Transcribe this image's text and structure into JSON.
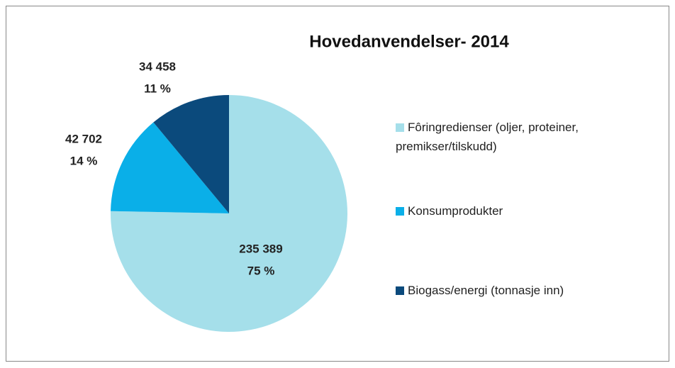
{
  "chart_data": {
    "type": "pie",
    "title": "Hovedanvendelser- 2014",
    "categories": [
      "Fôringredienser (oljer, proteiner, premikser/tilskudd)",
      "Konsumprodukter",
      "Biogass/energi (tonnasje inn)"
    ],
    "values": [
      235389,
      42702,
      34458
    ],
    "value_labels": [
      "235 389",
      "42 702",
      "34 458"
    ],
    "percents": [
      75,
      14,
      11
    ],
    "percent_labels": [
      "75 %",
      "14 %",
      "11 %"
    ],
    "colors": [
      "#a5dfea",
      "#0aafe8",
      "#0b4a7c"
    ],
    "legend": "right"
  }
}
